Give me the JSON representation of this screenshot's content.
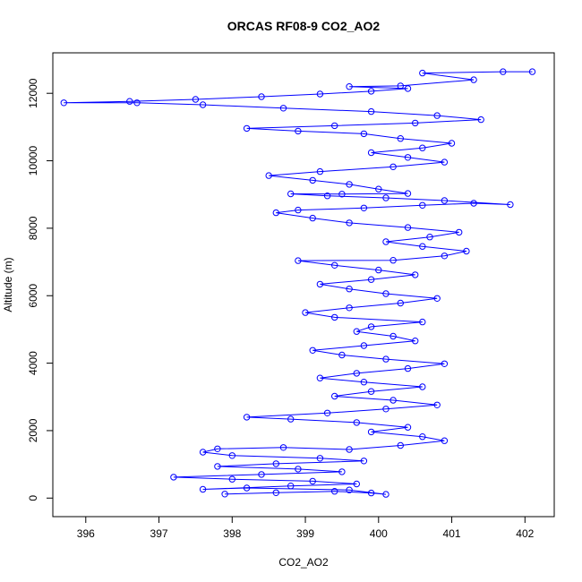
{
  "chart_data": {
    "type": "scatter",
    "title": "ORCAS RF08-9 CO2_AO2",
    "xlabel": "CO2_AO2",
    "ylabel": "Altitude (m)",
    "xlim": [
      395.55,
      402.4
    ],
    "ylim": [
      -550,
      13200
    ],
    "xticks": [
      396,
      397,
      398,
      399,
      400,
      401,
      402
    ],
    "yticks": [
      0,
      2000,
      4000,
      6000,
      8000,
      10000,
      12000
    ],
    "grid": false,
    "marker": "open-circle",
    "connected": true,
    "series": [
      {
        "color": "#0000ff",
        "points": [
          [
            397.9,
            120
          ],
          [
            398.6,
            160
          ],
          [
            399.4,
            200
          ],
          [
            399.9,
            150
          ],
          [
            400.1,
            110
          ],
          [
            399.6,
            240
          ],
          [
            398.2,
            300
          ],
          [
            397.6,
            260
          ],
          [
            398.8,
            360
          ],
          [
            399.7,
            420
          ],
          [
            399.1,
            500
          ],
          [
            398.0,
            560
          ],
          [
            397.2,
            620
          ],
          [
            398.4,
            700
          ],
          [
            399.5,
            780
          ],
          [
            398.9,
            860
          ],
          [
            397.8,
            940
          ],
          [
            398.6,
            1020
          ],
          [
            399.8,
            1100
          ],
          [
            399.2,
            1180
          ],
          [
            398.0,
            1260
          ],
          [
            397.6,
            1360
          ],
          [
            397.8,
            1460
          ],
          [
            398.7,
            1500
          ],
          [
            399.6,
            1440
          ],
          [
            400.3,
            1560
          ],
          [
            400.9,
            1700
          ],
          [
            400.6,
            1820
          ],
          [
            399.9,
            1960
          ],
          [
            400.4,
            2100
          ],
          [
            399.7,
            2240
          ],
          [
            398.8,
            2340
          ],
          [
            398.2,
            2400
          ],
          [
            399.3,
            2520
          ],
          [
            400.1,
            2640
          ],
          [
            400.8,
            2760
          ],
          [
            400.2,
            2900
          ],
          [
            399.4,
            3020
          ],
          [
            399.9,
            3160
          ],
          [
            400.6,
            3300
          ],
          [
            399.8,
            3440
          ],
          [
            399.2,
            3560
          ],
          [
            399.7,
            3700
          ],
          [
            400.4,
            3840
          ],
          [
            400.9,
            3980
          ],
          [
            400.1,
            4120
          ],
          [
            399.5,
            4240
          ],
          [
            399.1,
            4380
          ],
          [
            399.8,
            4520
          ],
          [
            400.5,
            4660
          ],
          [
            400.2,
            4800
          ],
          [
            399.7,
            4940
          ],
          [
            399.9,
            5080
          ],
          [
            400.6,
            5220
          ],
          [
            399.4,
            5360
          ],
          [
            399.0,
            5500
          ],
          [
            399.6,
            5640
          ],
          [
            400.3,
            5780
          ],
          [
            400.8,
            5920
          ],
          [
            400.1,
            6060
          ],
          [
            399.6,
            6200
          ],
          [
            399.2,
            6340
          ],
          [
            399.9,
            6480
          ],
          [
            400.5,
            6620
          ],
          [
            400.0,
            6760
          ],
          [
            399.4,
            6900
          ],
          [
            398.9,
            7040
          ],
          [
            400.2,
            7050
          ],
          [
            400.9,
            7180
          ],
          [
            401.2,
            7320
          ],
          [
            400.6,
            7460
          ],
          [
            400.1,
            7600
          ],
          [
            400.7,
            7740
          ],
          [
            401.1,
            7880
          ],
          [
            400.4,
            8020
          ],
          [
            399.6,
            8160
          ],
          [
            399.1,
            8300
          ],
          [
            398.6,
            8460
          ],
          [
            398.9,
            8540
          ],
          [
            399.8,
            8600
          ],
          [
            400.6,
            8680
          ],
          [
            401.3,
            8740
          ],
          [
            401.8,
            8700
          ],
          [
            400.9,
            8820
          ],
          [
            400.1,
            8900
          ],
          [
            399.3,
            8960
          ],
          [
            398.8,
            9020
          ],
          [
            399.5,
            9010
          ],
          [
            400.4,
            9030
          ],
          [
            400.0,
            9160
          ],
          [
            399.6,
            9300
          ],
          [
            399.1,
            9420
          ],
          [
            398.5,
            9560
          ],
          [
            399.2,
            9680
          ],
          [
            400.2,
            9820
          ],
          [
            400.9,
            9960
          ],
          [
            400.4,
            10100
          ],
          [
            399.9,
            10240
          ],
          [
            400.6,
            10380
          ],
          [
            401.0,
            10520
          ],
          [
            400.3,
            10660
          ],
          [
            399.8,
            10800
          ],
          [
            398.9,
            10880
          ],
          [
            398.2,
            10960
          ],
          [
            399.4,
            11040
          ],
          [
            400.5,
            11120
          ],
          [
            401.4,
            11220
          ],
          [
            400.8,
            11340
          ],
          [
            399.9,
            11460
          ],
          [
            398.7,
            11560
          ],
          [
            397.6,
            11660
          ],
          [
            396.7,
            11720
          ],
          [
            395.7,
            11720
          ],
          [
            396.6,
            11760
          ],
          [
            397.5,
            11820
          ],
          [
            398.4,
            11900
          ],
          [
            399.2,
            11980
          ],
          [
            399.9,
            12060
          ],
          [
            400.4,
            12140
          ],
          [
            399.6,
            12200
          ],
          [
            400.3,
            12220
          ],
          [
            401.3,
            12400
          ],
          [
            400.6,
            12600
          ],
          [
            401.7,
            12640
          ],
          [
            402.1,
            12640
          ]
        ]
      }
    ]
  }
}
